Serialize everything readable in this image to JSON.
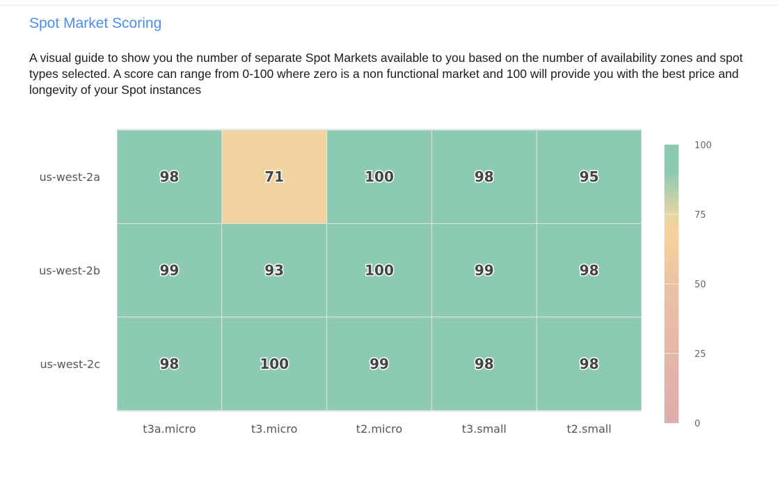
{
  "header": {
    "title": "Spot Market Scoring",
    "description": "A visual guide to show you the number of separate Spot Markets available to you based on the number of availability zones and spot types selected. A score can range from 0-100 where zero is a non functional market and 100 will provide you with the best price and longevity of your Spot instances"
  },
  "chart_data": {
    "type": "heatmap",
    "x_categories": [
      "t3a.micro",
      "t3.micro",
      "t2.micro",
      "t3.small",
      "t2.small"
    ],
    "y_categories": [
      "us-west-2a",
      "us-west-2b",
      "us-west-2c"
    ],
    "values": [
      [
        98,
        71,
        100,
        98,
        95
      ],
      [
        99,
        93,
        100,
        99,
        98
      ],
      [
        98,
        100,
        99,
        98,
        98
      ]
    ],
    "colorbar": {
      "range": [
        0,
        100
      ],
      "ticks": [
        "0",
        "25",
        "50",
        "75",
        "100"
      ],
      "colorscale": [
        [
          0,
          "#ddacac"
        ],
        [
          50,
          "#ecc2a3"
        ],
        [
          68,
          "#f7d29b"
        ],
        [
          75,
          "#e6d4a3"
        ],
        [
          90,
          "#8ccab1"
        ],
        [
          100,
          "#8ccab1"
        ]
      ]
    },
    "title": "",
    "xlabel": "",
    "ylabel": ""
  }
}
